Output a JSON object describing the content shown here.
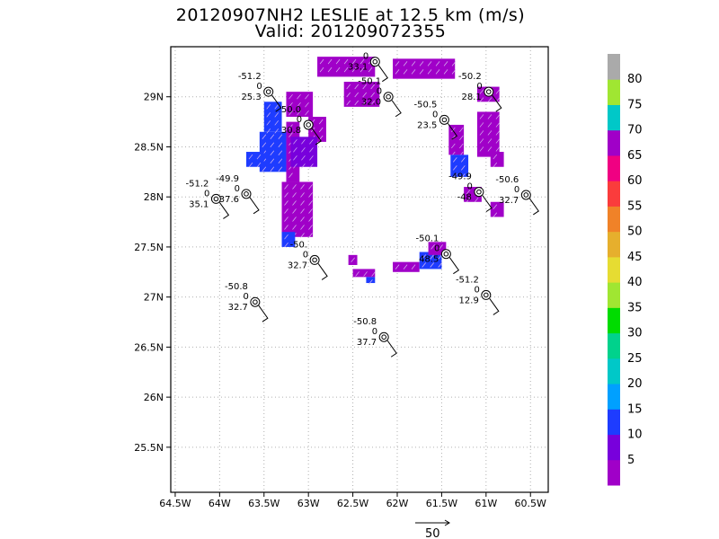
{
  "header": {
    "title": "20120907NH2 LESLIE at 12.5 km (m/s)",
    "subtitle": "Valid: 201209072355"
  },
  "colors": {
    "wind_purple": "#a000c8",
    "wind_blue": "#1e3cff",
    "wind_indigo": "#7a00e6",
    "frame": "#000000",
    "grid": "#b0b0b0"
  },
  "chart_data": {
    "type": "heatmap",
    "title": "20120907NH2 LESLIE at 12.5 km (m/s)",
    "subtitle": "Valid: 201209072355",
    "xlim": [
      -64.55,
      -60.3
    ],
    "ylim": [
      25.05,
      29.5
    ],
    "x_ticks": [
      -64.5,
      -64,
      -63.5,
      -63,
      -62.5,
      -62,
      -61.5,
      -61,
      -60.5
    ],
    "x_tick_labels": [
      "64.5W",
      "64W",
      "63.5W",
      "63W",
      "62.5W",
      "62W",
      "61.5W",
      "61W",
      "60.5W"
    ],
    "y_ticks": [
      25.5,
      26,
      26.5,
      27,
      27.5,
      28,
      28.5,
      29
    ],
    "y_tick_labels": [
      "25.5N",
      "26N",
      "26.5N",
      "27N",
      "27.5N",
      "28N",
      "28.5N",
      "29N"
    ],
    "grid": true,
    "colorbar": {
      "levels": [
        "5",
        "10",
        "15",
        "20",
        "25",
        "30",
        "35",
        "40",
        "45",
        "50",
        "55",
        "60",
        "65",
        "70",
        "75",
        "80"
      ],
      "colors": [
        "#a000c8",
        "#7800dc",
        "#1e3cff",
        "#00a0ff",
        "#00c8c8",
        "#00d28c",
        "#00dc00",
        "#a0e632",
        "#e6dc32",
        "#e6af2d",
        "#f08228",
        "#fa3c3c",
        "#f00082",
        "#a000c8",
        "#00c8c8",
        "#a0e632",
        "#aaaaaa"
      ]
    },
    "vector_reference": {
      "label": "50"
    },
    "stations": [
      {
        "lon": -63.45,
        "lat": 29.05,
        "top": "-51.2",
        "mid": "0",
        "bot": "25.3"
      },
      {
        "lon": -62.25,
        "lat": 29.35,
        "top": "",
        "mid": "0",
        "bot": "33.1"
      },
      {
        "lon": -62.1,
        "lat": 29.0,
        "top": "-50.1",
        "mid": "0",
        "bot": "32.0"
      },
      {
        "lon": -60.97,
        "lat": 29.05,
        "top": "-50.2",
        "mid": "0",
        "bot": "28.1"
      },
      {
        "lon": -63.0,
        "lat": 28.72,
        "top": "50.0",
        "mid": "0",
        "bot": "30.8"
      },
      {
        "lon": -61.47,
        "lat": 28.77,
        "top": "-50.5",
        "mid": "0",
        "bot": "23.5"
      },
      {
        "lon": -63.7,
        "lat": 28.03,
        "top": "-49.9",
        "mid": "0",
        "bot": "37.6"
      },
      {
        "lon": -64.04,
        "lat": 27.98,
        "top": "-51.2",
        "mid": "0",
        "bot": "35.1"
      },
      {
        "lon": -61.08,
        "lat": 28.05,
        "top": "-49.9",
        "mid": "0",
        "bot": "-48"
      },
      {
        "lon": -60.55,
        "lat": 28.02,
        "top": "-50.6",
        "mid": "0",
        "bot": "32.7"
      },
      {
        "lon": -62.93,
        "lat": 27.37,
        "top": "-50.",
        "mid": "0",
        "bot": "32.7"
      },
      {
        "lon": -61.45,
        "lat": 27.43,
        "top": "-50.1",
        "mid": "0",
        "bot": "48.5"
      },
      {
        "lon": -61.0,
        "lat": 27.02,
        "top": "-51.2",
        "mid": "0",
        "bot": "12.9"
      },
      {
        "lon": -63.6,
        "lat": 26.95,
        "top": "-50.8",
        "mid": "0",
        "bot": "32.7"
      },
      {
        "lon": -62.15,
        "lat": 26.6,
        "top": "-50.8",
        "mid": "0",
        "bot": "37.7"
      }
    ],
    "wind_cells": [
      {
        "lon0": -62.9,
        "lon1": -62.25,
        "lat0": 29.2,
        "lat1": 29.4,
        "level": "5"
      },
      {
        "lon0": -62.05,
        "lon1": -61.35,
        "lat0": 29.18,
        "lat1": 29.38,
        "level": "5"
      },
      {
        "lon0": -61.1,
        "lon1": -60.85,
        "lat0": 28.95,
        "lat1": 29.1,
        "level": "5"
      },
      {
        "lon0": -62.6,
        "lon1": -62.2,
        "lat0": 28.9,
        "lat1": 29.15,
        "level": "5"
      },
      {
        "lon0": -63.0,
        "lon1": -62.8,
        "lat0": 28.55,
        "lat1": 28.8,
        "level": "5"
      },
      {
        "lon0": -63.25,
        "lon1": -62.95,
        "lat0": 28.8,
        "lat1": 29.05,
        "level": "5"
      },
      {
        "lon0": -63.25,
        "lon1": -63.1,
        "lat0": 28.15,
        "lat1": 28.75,
        "level": "5"
      },
      {
        "lon0": -63.55,
        "lon1": -63.25,
        "lat0": 28.25,
        "lat1": 28.65,
        "level": "15"
      },
      {
        "lon0": -63.5,
        "lon1": -63.3,
        "lat0": 28.65,
        "lat1": 28.95,
        "level": "15"
      },
      {
        "lon0": -63.7,
        "lon1": -63.5,
        "lat0": 28.3,
        "lat1": 28.45,
        "level": "15"
      },
      {
        "lon0": -63.2,
        "lon1": -62.9,
        "lat0": 28.3,
        "lat1": 28.6,
        "level": "10"
      },
      {
        "lon0": -63.3,
        "lon1": -62.95,
        "lat0": 27.6,
        "lat1": 28.15,
        "level": "5"
      },
      {
        "lon0": -63.3,
        "lon1": -63.15,
        "lat0": 27.5,
        "lat1": 27.65,
        "level": "15"
      },
      {
        "lon0": -61.1,
        "lon1": -60.85,
        "lat0": 28.4,
        "lat1": 28.85,
        "level": "5"
      },
      {
        "lon0": -60.95,
        "lon1": -60.8,
        "lat0": 28.3,
        "lat1": 28.45,
        "level": "5"
      },
      {
        "lon0": -61.42,
        "lon1": -61.25,
        "lat0": 28.42,
        "lat1": 28.72,
        "level": "5"
      },
      {
        "lon0": -61.4,
        "lon1": -61.2,
        "lat0": 28.2,
        "lat1": 28.42,
        "level": "15"
      },
      {
        "lon0": -61.25,
        "lon1": -61.05,
        "lat0": 27.95,
        "lat1": 28.1,
        "level": "5"
      },
      {
        "lon0": -60.95,
        "lon1": -60.8,
        "lat0": 27.8,
        "lat1": 27.95,
        "level": "5"
      },
      {
        "lon0": -62.05,
        "lon1": -61.75,
        "lat0": 27.25,
        "lat1": 27.35,
        "level": "5"
      },
      {
        "lon0": -61.75,
        "lon1": -61.5,
        "lat0": 27.28,
        "lat1": 27.45,
        "level": "15"
      },
      {
        "lon0": -61.65,
        "lon1": -61.45,
        "lat0": 27.42,
        "lat1": 27.55,
        "level": "5"
      },
      {
        "lon0": -62.55,
        "lon1": -62.45,
        "lat0": 27.32,
        "lat1": 27.42,
        "level": "5"
      },
      {
        "lon0": -62.5,
        "lon1": -62.25,
        "lat0": 27.2,
        "lat1": 27.28,
        "level": "5"
      },
      {
        "lon0": -62.35,
        "lon1": -62.25,
        "lat0": 27.14,
        "lat1": 27.2,
        "level": "15"
      }
    ]
  }
}
